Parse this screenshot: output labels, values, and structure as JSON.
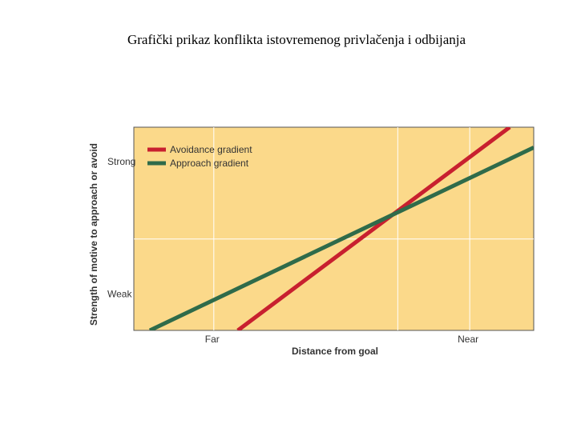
{
  "slide": {
    "title": "Grafički prikaz konflikta istovremenog privlačenja i odbijanja"
  },
  "chart_data": {
    "type": "line",
    "xlabel": "Distance from goal",
    "ylabel": "Strength of motive to approach or avoid",
    "x_ticks": [
      "Far",
      "Near"
    ],
    "y_ticks": [
      "Weak",
      "Strong"
    ],
    "xlim": [
      0,
      1
    ],
    "ylim": [
      0,
      1
    ],
    "grid": true,
    "legend": "top-left",
    "background_color": "#fbd98a",
    "series": [
      {
        "name": "Avoidance gradient",
        "color": "#c8202f",
        "x": [
          0.26,
          0.94
        ],
        "y": [
          0.0,
          1.0
        ]
      },
      {
        "name": "Approach gradient",
        "color": "#2f6b4a",
        "x": [
          0.04,
          1.0
        ],
        "y": [
          0.0,
          0.9
        ]
      }
    ]
  }
}
